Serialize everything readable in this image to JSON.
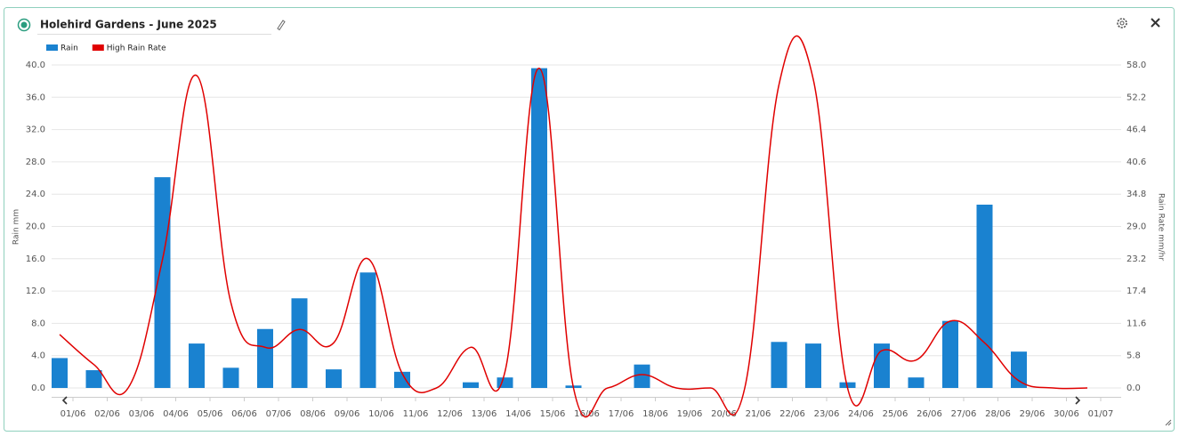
{
  "chart_data": {
    "type": "bar",
    "title": "Holehird Gardens - June 2025",
    "y_label": "Rain mm",
    "y2_label": "Rain Rate mm/hr",
    "categories": [
      "01/06",
      "02/06",
      "03/06",
      "04/06",
      "05/06",
      "06/06",
      "07/06",
      "08/06",
      "09/06",
      "10/06",
      "11/06",
      "12/06",
      "13/06",
      "14/06",
      "15/06",
      "16/06",
      "17/06",
      "18/06",
      "19/06",
      "20/06",
      "21/06",
      "22/06",
      "23/06",
      "24/06",
      "25/06",
      "26/06",
      "27/06",
      "28/06",
      "29/06",
      "30/06",
      "01/07"
    ],
    "series": [
      {
        "name": "Rain",
        "type": "bar",
        "color": "#1a82d0",
        "values": [
          3.7,
          2.2,
          0,
          26.1,
          5.5,
          2.5,
          7.3,
          11.1,
          2.3,
          14.3,
          2.0,
          0,
          0.7,
          1.3,
          39.6,
          0.3,
          0,
          2.9,
          0,
          0,
          0,
          5.7,
          5.5,
          0.7,
          5.5,
          1.3,
          8.3,
          22.7,
          4.5,
          0,
          0
        ]
      },
      {
        "name": "High Rain Rate",
        "type": "line",
        "color": "#e00000",
        "axis": "y2",
        "values": [
          9.6,
          4.2,
          0,
          23,
          56.1,
          15.3,
          7.3,
          10.5,
          8.1,
          23.2,
          2.6,
          0,
          7.3,
          2.9,
          57.4,
          0,
          0,
          2.4,
          0,
          0,
          0,
          54.5,
          55.4,
          0,
          6.7,
          5.0,
          12.0,
          8.1,
          1.3,
          0,
          0
        ]
      }
    ],
    "ylim": [
      0,
      40
    ],
    "yticks": [
      {
        "value": 0,
        "label": "0.0"
      },
      {
        "value": 4,
        "label": "4.0"
      },
      {
        "value": 8,
        "label": "8.0"
      },
      {
        "value": 12,
        "label": "12.0"
      },
      {
        "value": 16,
        "label": "16.0"
      },
      {
        "value": 20,
        "label": "20.0"
      },
      {
        "value": 24,
        "label": "24.0"
      },
      {
        "value": 28,
        "label": "28.0"
      },
      {
        "value": 32,
        "label": "32.0"
      },
      {
        "value": 36,
        "label": "36.0"
      },
      {
        "value": 40,
        "label": "40.0"
      }
    ],
    "y2lim": [
      0,
      58
    ],
    "y2ticks": [
      {
        "value": 0,
        "label": "0.0"
      },
      {
        "value": 5.8,
        "label": "5.8"
      },
      {
        "value": 11.6,
        "label": "11.6"
      },
      {
        "value": 17.4,
        "label": "17.4"
      },
      {
        "value": 23.2,
        "label": "23.2"
      },
      {
        "value": 29,
        "label": "29.0"
      },
      {
        "value": 34.8,
        "label": "34.8"
      },
      {
        "value": 40.6,
        "label": "40.6"
      },
      {
        "value": 46.4,
        "label": "46.4"
      },
      {
        "value": 52.2,
        "label": "52.2"
      },
      {
        "value": 58,
        "label": "58.0"
      }
    ],
    "grid": true
  }
}
